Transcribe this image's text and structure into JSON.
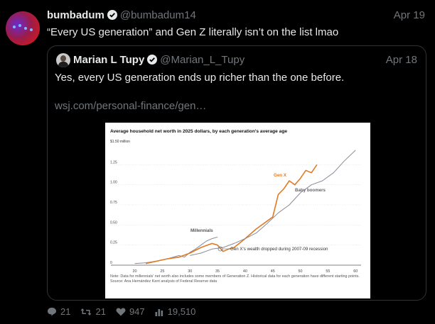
{
  "tweet": {
    "display_name": "bumbadum",
    "handle": "@bumbadum14",
    "date": "Apr 19",
    "text": "“Every US generation” and Gen Z literally isn’t on the list lmao"
  },
  "quoted": {
    "display_name": "Marian L Tupy",
    "handle": "@Marian_L_Tupy",
    "date": "Apr 18",
    "text": "Yes, every US generation ends up richer than the one before.",
    "link": "wsj.com/personal-finance/gen…"
  },
  "chart_data": {
    "type": "line",
    "title": "Average household net worth in 2025 dollars, by each generation's average age",
    "ylabel_top": "$1.50 million",
    "y_ticks": [
      "1.25",
      "1.00",
      "0.75",
      "0.50",
      "0.25",
      "0"
    ],
    "x_ticks": [
      "20",
      "25",
      "30",
      "35",
      "40",
      "45",
      "50",
      "55",
      "60"
    ],
    "xlim": [
      18,
      61
    ],
    "ylim": [
      0,
      1.5
    ],
    "series": [
      {
        "name": "Millennials",
        "color": "#8a8a9c",
        "x": [
          20,
          22,
          24,
          26,
          28,
          29,
          30,
          31,
          32,
          33,
          34,
          35
        ],
        "y": [
          0.02,
          0.03,
          0.05,
          0.08,
          0.12,
          0.1,
          0.16,
          0.2,
          0.25,
          0.3,
          0.33,
          0.35
        ]
      },
      {
        "name": "Gen X",
        "color": "#e07b24",
        "x": [
          22,
          24,
          26,
          28,
          30,
          32,
          34,
          35,
          36,
          37,
          38,
          40,
          42,
          44,
          45,
          46,
          47,
          48,
          49,
          50,
          51,
          52,
          53
        ],
        "y": [
          0.02,
          0.05,
          0.08,
          0.1,
          0.15,
          0.22,
          0.27,
          0.25,
          0.17,
          0.2,
          0.22,
          0.33,
          0.45,
          0.55,
          0.6,
          0.88,
          0.95,
          1.05,
          1.0,
          1.08,
          1.18,
          1.15,
          1.25
        ]
      },
      {
        "name": "Baby boomers",
        "color": "#8a8a9c",
        "x": [
          30,
          32,
          34,
          36,
          38,
          40,
          42,
          44,
          46,
          48,
          50,
          52,
          54,
          56,
          58,
          60
        ],
        "y": [
          0.12,
          0.15,
          0.2,
          0.22,
          0.27,
          0.33,
          0.4,
          0.52,
          0.65,
          0.75,
          0.9,
          1.0,
          1.05,
          1.15,
          1.3,
          1.43
        ]
      }
    ],
    "annotation": "Gen X’s wealth dropped during 2007-09 recession",
    "note": "Note: Data for millennials' net worth also includes some members of Generation Z. Historical data for each generation have different starting points.",
    "source": "Source: Ana Hernández Kent analysis of Federal Reserve data"
  },
  "actions": {
    "replies": "21",
    "retweets": "21",
    "likes": "947",
    "views": "19,510"
  }
}
